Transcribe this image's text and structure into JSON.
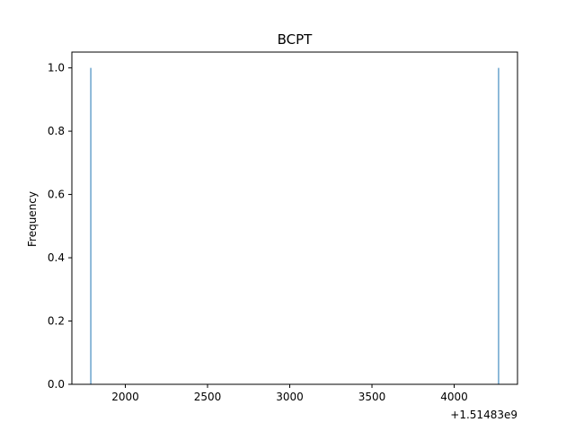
{
  "chart_data": {
    "type": "bar",
    "title": "BCPT",
    "xlabel": "",
    "ylabel": "Frequency",
    "x_offset_label": "+1.51483e9",
    "x_offset": 1514830000,
    "x_tick_labels": [
      "2000",
      "2500",
      "3000",
      "3500",
      "4000"
    ],
    "y_tick_labels": [
      "0.0",
      "0.2",
      "0.4",
      "0.6",
      "0.8",
      "1.0"
    ],
    "xlim": [
      1514831675,
      1514834385
    ],
    "ylim": [
      0,
      1.05
    ],
    "grid": false,
    "series": [
      {
        "values": [
          {
            "x": 1514831790,
            "y": 1
          },
          {
            "x": 1514834270,
            "y": 1
          }
        ]
      }
    ],
    "colors": {
      "bar": "#1f77b4",
      "axes": "#000000"
    }
  }
}
